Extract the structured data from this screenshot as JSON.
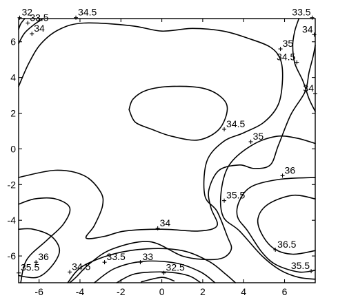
{
  "chart_data": {
    "type": "contour",
    "title": "",
    "xlabel": "",
    "ylabel": "",
    "xlim": [
      -7,
      7.5
    ],
    "ylim": [
      -7.5,
      7.3
    ],
    "x_ticks": [
      {
        "value": -6,
        "label": "-6"
      },
      {
        "value": -4,
        "label": "-4"
      },
      {
        "value": -2,
        "label": "-2"
      },
      {
        "value": 0,
        "label": "0"
      },
      {
        "value": 2,
        "label": "2"
      },
      {
        "value": 4,
        "label": "4"
      },
      {
        "value": 6,
        "label": "6"
      }
    ],
    "y_ticks": [
      {
        "value": -6,
        "label": "-6"
      },
      {
        "value": -4,
        "label": "-4"
      },
      {
        "value": -2,
        "label": "-2"
      },
      {
        "value": 0,
        "label": "0"
      },
      {
        "value": 2,
        "label": "2"
      },
      {
        "value": 4,
        "label": "4"
      },
      {
        "value": 6,
        "label": "6"
      }
    ],
    "contour_lines": [
      {
        "level": "33.5",
        "points": [
          [
            -7,
            6.7
          ],
          [
            -6.9,
            7
          ],
          [
            -6.7,
            7.3
          ]
        ]
      },
      {
        "level": "34",
        "points": [
          [
            -7,
            5.9
          ],
          [
            -6.7,
            6.5
          ],
          [
            -6.2,
            7
          ],
          [
            -5.8,
            7.3
          ]
        ]
      },
      {
        "level": "34.5",
        "points": [
          [
            -7,
            3.5
          ],
          [
            -6.5,
            4.8
          ],
          [
            -5.9,
            5.9
          ],
          [
            -5,
            6.7
          ],
          [
            -3.8,
            7.05
          ],
          [
            -1.5,
            6.9
          ],
          [
            0,
            6.6
          ],
          [
            1.5,
            6.75
          ],
          [
            3,
            6.6
          ],
          [
            4.2,
            6.2
          ],
          [
            5.3,
            5.7
          ],
          [
            5.8,
            5.0
          ],
          [
            5.9,
            3.9
          ],
          [
            5.7,
            2.5
          ],
          [
            5.0,
            1.5
          ],
          [
            4.0,
            0.9
          ],
          [
            3.0,
            0.4
          ],
          [
            2.2,
            -0.7
          ],
          [
            2.1,
            -2.6
          ],
          [
            2.7,
            -3.5
          ],
          [
            3.2,
            -4.9
          ],
          [
            3.4,
            -5.6
          ],
          [
            3.0,
            -6.1
          ],
          [
            2.2,
            -6.2
          ],
          [
            1.0,
            -6.0
          ],
          [
            -0.6,
            -5.2
          ],
          [
            -2.4,
            -5.6
          ],
          [
            -3.5,
            -6.4
          ],
          [
            -4.2,
            -7.2
          ],
          [
            -4.5,
            -7.5
          ]
        ]
      },
      {
        "level": "34.5",
        "points": [
          [
            -1.6,
            2.2
          ],
          [
            -1.4,
            2.8
          ],
          [
            -0.7,
            3.3
          ],
          [
            0.5,
            3.5
          ],
          [
            2.0,
            3.4
          ],
          [
            2.9,
            2.9
          ],
          [
            3.2,
            2.2
          ],
          [
            2.8,
            1.1
          ],
          [
            1.8,
            0.5
          ],
          [
            0.5,
            0.7
          ],
          [
            -0.5,
            1.1
          ],
          [
            -1.3,
            1.5
          ],
          [
            -1.6,
            2.2
          ]
        ]
      },
      {
        "level": "34",
        "points": [
          [
            -7,
            -1.6
          ],
          [
            -5.2,
            -1.2
          ],
          [
            -3.8,
            -1.5
          ],
          [
            -3.0,
            -2.4
          ],
          [
            -2.9,
            -3.2
          ],
          [
            -3.3,
            -4.3
          ],
          [
            -3.7,
            -5.0
          ],
          [
            -2.8,
            -4.9
          ],
          [
            -1.8,
            -4.6
          ],
          [
            0,
            -4.5
          ],
          [
            1.8,
            -4.6
          ],
          [
            2.7,
            -4.3
          ],
          [
            2.4,
            -3.3
          ],
          [
            2.3,
            -2.3
          ],
          [
            2.8,
            -1.2
          ],
          [
            3.8,
            -0.9
          ],
          [
            4.5,
            -1.1
          ],
          [
            5.3,
            -0.9
          ],
          [
            5.7,
            0.2
          ],
          [
            6.3,
            1.9
          ],
          [
            7.0,
            3.2
          ],
          [
            7.2,
            4.3
          ],
          [
            7.4,
            5.2
          ],
          [
            7.5,
            5.8
          ]
        ]
      },
      {
        "level": "34.5",
        "points": [
          [
            6.7,
            7.3
          ],
          [
            6.5,
            6.6
          ],
          [
            6.4,
            5.8
          ],
          [
            6.5,
            4.8
          ],
          [
            6.9,
            3.8
          ],
          [
            7.2,
            2.8
          ],
          [
            7.5,
            2.1
          ]
        ]
      },
      {
        "level": "35",
        "points": [
          [
            -6.9,
            -7.5
          ],
          [
            -6.6,
            -6.2
          ],
          [
            -5.6,
            -5.1
          ],
          [
            -4.8,
            -4.2
          ],
          [
            -4.5,
            -3.3
          ],
          [
            -5.2,
            -2.8
          ],
          [
            -6.2,
            -2.8
          ],
          [
            -7,
            -3.1
          ]
        ]
      },
      {
        "level": "36",
        "points": [
          [
            -7,
            -7.1
          ],
          [
            -6.1,
            -7.2
          ],
          [
            -5.4,
            -6.6
          ],
          [
            -5.0,
            -5.7
          ],
          [
            -5.4,
            -4.9
          ],
          [
            -6.3,
            -4.5
          ],
          [
            -7,
            -4.5
          ]
        ]
      },
      {
        "level": "35",
        "points": [
          [
            7.5,
            0.3
          ],
          [
            6.6,
            0.6
          ],
          [
            5.6,
            0.7
          ],
          [
            4.4,
            0.2
          ],
          [
            3.3,
            -0.9
          ],
          [
            2.9,
            -2.4
          ],
          [
            3.0,
            -3.8
          ],
          [
            3.8,
            -4.6
          ],
          [
            4.9,
            -6.0
          ],
          [
            5.8,
            -6.8
          ],
          [
            6.7,
            -7.2
          ],
          [
            7.5,
            -7.3
          ]
        ]
      },
      {
        "level": "35.5",
        "points": [
          [
            7.5,
            -1.6
          ],
          [
            5.8,
            -1.7
          ],
          [
            4.4,
            -2.1
          ],
          [
            3.8,
            -2.9
          ],
          [
            3.7,
            -3.8
          ],
          [
            4.2,
            -4.6
          ],
          [
            4.9,
            -5.8
          ],
          [
            5.6,
            -6.5
          ],
          [
            6.7,
            -6.9
          ],
          [
            7.5,
            -6.8
          ]
        ]
      },
      {
        "level": "36",
        "points": [
          [
            7.5,
            -2.8
          ],
          [
            6.4,
            -2.6
          ],
          [
            5.2,
            -3.1
          ],
          [
            4.7,
            -3.9
          ],
          [
            4.9,
            -4.8
          ],
          [
            5.5,
            -5.6
          ],
          [
            6.4,
            -5.9
          ],
          [
            7.5,
            -5.7
          ]
        ]
      },
      {
        "level": "33.5",
        "points": [
          [
            -4.6,
            -7.5
          ],
          [
            -3.9,
            -6.6
          ],
          [
            -2.4,
            -5.9
          ],
          [
            -0.7,
            -5.6
          ],
          [
            1.0,
            -5.7
          ],
          [
            2.3,
            -6.3
          ],
          [
            3.1,
            -7.0
          ],
          [
            3.6,
            -7.5
          ]
        ]
      },
      {
        "level": "33",
        "points": [
          [
            -3.3,
            -7.5
          ],
          [
            -2.3,
            -6.7
          ],
          [
            -0.9,
            -6.3
          ],
          [
            0.7,
            -6.4
          ],
          [
            1.9,
            -6.9
          ],
          [
            2.6,
            -7.5
          ]
        ]
      },
      {
        "level": "32.5",
        "points": [
          [
            -2.2,
            -7.5
          ],
          [
            -1.3,
            -7.0
          ],
          [
            0.2,
            -6.9
          ],
          [
            1.3,
            -7.1
          ],
          [
            1.9,
            -7.5
          ]
        ]
      },
      {
        "level": "32",
        "points": [
          [
            -1.0,
            -7.45
          ],
          [
            0,
            -7.2
          ],
          [
            0.6,
            -7.4
          ]
        ]
      }
    ],
    "contour_labels": [
      {
        "text": "32",
        "x": -6.95,
        "y": 7.35
      },
      {
        "text": "33.5",
        "x": -6.55,
        "y": 7.05
      },
      {
        "text": "34",
        "x": -6.35,
        "y": 6.45
      },
      {
        "text": "34.5",
        "x": -4.2,
        "y": 7.35
      },
      {
        "text": "33.5",
        "x": 7.35,
        "y": 7.35
      },
      {
        "text": "34",
        "x": 7.45,
        "y": 6.4
      },
      {
        "text": "35",
        "x": 5.8,
        "y": 5.6
      },
      {
        "text": "34.5",
        "x": 6.6,
        "y": 4.85
      },
      {
        "text": "34",
        "x": 7.5,
        "y": 3.1
      },
      {
        "text": "34.5",
        "x": 3.05,
        "y": 1.1
      },
      {
        "text": "35",
        "x": 4.35,
        "y": 0.4
      },
      {
        "text": "36",
        "x": 5.9,
        "y": -1.5
      },
      {
        "text": "35.5",
        "x": 3.05,
        "y": -2.9
      },
      {
        "text": "34",
        "x": -0.2,
        "y": -4.45
      },
      {
        "text": "36.5",
        "x": 5.55,
        "y": -5.65
      },
      {
        "text": "35.5",
        "x": 7.3,
        "y": -6.85
      },
      {
        "text": "36",
        "x": -6.15,
        "y": -6.35
      },
      {
        "text": "35.5",
        "x": -7.0,
        "y": -6.95
      },
      {
        "text": "34.5",
        "x": -4.5,
        "y": -6.9
      },
      {
        "text": "33.5",
        "x": -2.8,
        "y": -6.35
      },
      {
        "text": "33",
        "x": -1.05,
        "y": -6.35
      },
      {
        "text": "32.5",
        "x": 0.1,
        "y": -6.95
      }
    ],
    "grid": false,
    "legend": "none"
  }
}
